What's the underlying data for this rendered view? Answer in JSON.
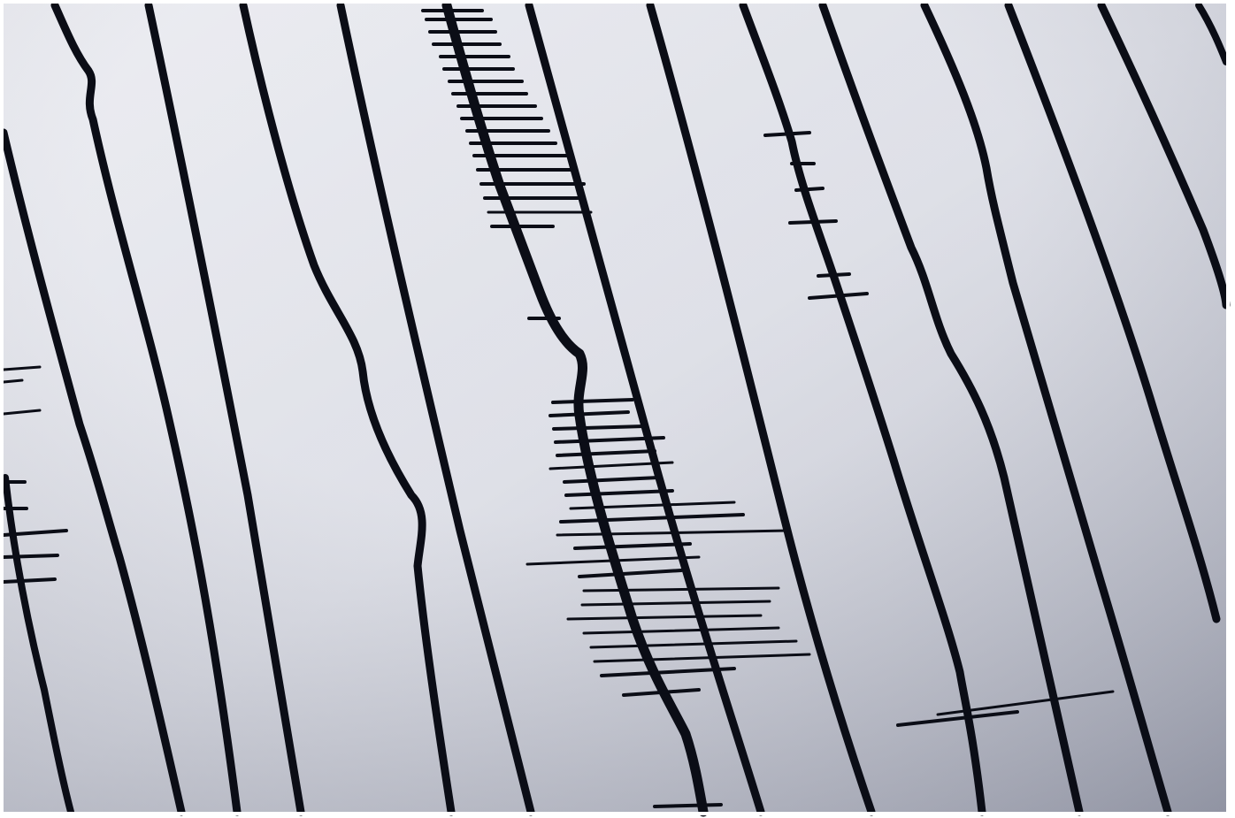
{
  "image": {
    "subject": "seismograph-traces",
    "colors": {
      "paper_light": "#e4e6ec",
      "paper_mid": "#cfd2dc",
      "paper_dark": "#9ea2b0",
      "ink": "#0b0d16",
      "border": "#ffffff"
    },
    "trace_count": 15,
    "burst_count": 4
  }
}
